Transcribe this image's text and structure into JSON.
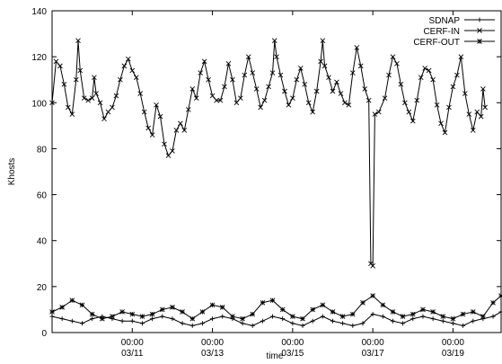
{
  "chart_data": {
    "type": "line",
    "title": "",
    "xlabel": "time",
    "ylabel": "Khosts",
    "ylim": [
      0,
      140
    ],
    "yticks": [
      0,
      20,
      40,
      60,
      80,
      100,
      120,
      140
    ],
    "xlim": [
      0,
      11.2
    ],
    "xticks": [
      {
        "x": 2,
        "line1": "00:00",
        "line2": "03/11"
      },
      {
        "x": 4,
        "line1": "00:00",
        "line2": "03/13"
      },
      {
        "x": 6,
        "line1": "00:00",
        "line2": "03/15"
      },
      {
        "x": 8,
        "line1": "00:00",
        "line2": "03/17"
      },
      {
        "x": 10,
        "line1": "00:00",
        "line2": "03/19"
      }
    ],
    "legend_position": "top-right",
    "grid": false,
    "series": [
      {
        "name": "SDNAP",
        "marker": "plus",
        "points": [
          [
            0.0,
            7
          ],
          [
            0.25,
            6
          ],
          [
            0.5,
            5
          ],
          [
            0.75,
            4
          ],
          [
            1.0,
            6
          ],
          [
            1.25,
            7
          ],
          [
            1.5,
            6
          ],
          [
            1.75,
            5
          ],
          [
            2.0,
            5
          ],
          [
            2.25,
            4
          ],
          [
            2.5,
            6
          ],
          [
            2.75,
            7
          ],
          [
            3.0,
            6
          ],
          [
            3.25,
            4
          ],
          [
            3.5,
            3
          ],
          [
            3.75,
            4
          ],
          [
            4.0,
            6
          ],
          [
            4.25,
            7
          ],
          [
            4.5,
            6
          ],
          [
            4.75,
            4
          ],
          [
            5.0,
            3
          ],
          [
            5.25,
            5
          ],
          [
            5.5,
            7
          ],
          [
            5.75,
            6
          ],
          [
            6.0,
            4
          ],
          [
            6.25,
            3
          ],
          [
            6.5,
            5
          ],
          [
            6.75,
            7
          ],
          [
            7.0,
            5
          ],
          [
            7.25,
            4
          ],
          [
            7.5,
            3
          ],
          [
            7.75,
            4
          ],
          [
            8.0,
            8
          ],
          [
            8.25,
            7
          ],
          [
            8.5,
            5
          ],
          [
            8.75,
            4
          ],
          [
            9.0,
            6
          ],
          [
            9.25,
            7
          ],
          [
            9.5,
            6
          ],
          [
            9.75,
            5
          ],
          [
            10.0,
            4
          ],
          [
            10.25,
            3
          ],
          [
            10.5,
            5
          ],
          [
            10.75,
            6
          ],
          [
            11.0,
            7
          ],
          [
            11.2,
            9
          ]
        ]
      },
      {
        "name": "CERF-IN",
        "marker": "x",
        "points": [
          [
            0.0,
            100
          ],
          [
            0.1,
            118
          ],
          [
            0.2,
            116
          ],
          [
            0.3,
            108
          ],
          [
            0.4,
            98
          ],
          [
            0.5,
            95
          ],
          [
            0.6,
            110
          ],
          [
            0.65,
            127
          ],
          [
            0.7,
            114
          ],
          [
            0.8,
            102
          ],
          [
            0.9,
            101
          ],
          [
            1.0,
            102
          ],
          [
            1.05,
            111
          ],
          [
            1.1,
            104
          ],
          [
            1.2,
            100
          ],
          [
            1.3,
            93
          ],
          [
            1.4,
            96
          ],
          [
            1.5,
            98
          ],
          [
            1.6,
            103
          ],
          [
            1.7,
            110
          ],
          [
            1.8,
            116
          ],
          [
            1.9,
            119
          ],
          [
            2.0,
            114
          ],
          [
            2.1,
            111
          ],
          [
            2.2,
            104
          ],
          [
            2.3,
            96
          ],
          [
            2.4,
            89
          ],
          [
            2.5,
            86
          ],
          [
            2.6,
            99
          ],
          [
            2.7,
            94
          ],
          [
            2.8,
            82
          ],
          [
            2.9,
            77
          ],
          [
            3.0,
            79
          ],
          [
            3.1,
            88
          ],
          [
            3.2,
            91
          ],
          [
            3.3,
            88
          ],
          [
            3.4,
            97
          ],
          [
            3.5,
            106
          ],
          [
            3.6,
            102
          ],
          [
            3.7,
            113
          ],
          [
            3.8,
            118
          ],
          [
            3.9,
            110
          ],
          [
            4.0,
            103
          ],
          [
            4.1,
            101
          ],
          [
            4.2,
            101
          ],
          [
            4.3,
            107
          ],
          [
            4.4,
            117
          ],
          [
            4.5,
            110
          ],
          [
            4.6,
            100
          ],
          [
            4.7,
            102
          ],
          [
            4.8,
            112
          ],
          [
            4.9,
            120
          ],
          [
            5.0,
            113
          ],
          [
            5.1,
            106
          ],
          [
            5.2,
            98
          ],
          [
            5.3,
            101
          ],
          [
            5.4,
            107
          ],
          [
            5.5,
            113
          ],
          [
            5.55,
            127
          ],
          [
            5.6,
            120
          ],
          [
            5.7,
            112
          ],
          [
            5.8,
            105
          ],
          [
            5.9,
            99
          ],
          [
            6.0,
            102
          ],
          [
            6.1,
            110
          ],
          [
            6.2,
            115
          ],
          [
            6.3,
            108
          ],
          [
            6.4,
            100
          ],
          [
            6.5,
            96
          ],
          [
            6.6,
            105
          ],
          [
            6.7,
            118
          ],
          [
            6.75,
            127
          ],
          [
            6.8,
            116
          ],
          [
            6.9,
            111
          ],
          [
            7.0,
            105
          ],
          [
            7.1,
            109
          ],
          [
            7.2,
            104
          ],
          [
            7.3,
            100
          ],
          [
            7.4,
            99
          ],
          [
            7.5,
            113
          ],
          [
            7.6,
            124
          ],
          [
            7.7,
            116
          ],
          [
            7.8,
            106
          ],
          [
            7.9,
            101
          ],
          [
            7.95,
            30
          ],
          [
            8.0,
            29
          ],
          [
            8.05,
            95
          ],
          [
            8.15,
            96
          ],
          [
            8.3,
            102
          ],
          [
            8.4,
            112
          ],
          [
            8.5,
            120
          ],
          [
            8.6,
            117
          ],
          [
            8.7,
            108
          ],
          [
            8.8,
            100
          ],
          [
            8.9,
            96
          ],
          [
            9.0,
            92
          ],
          [
            9.1,
            101
          ],
          [
            9.2,
            111
          ],
          [
            9.3,
            115
          ],
          [
            9.4,
            114
          ],
          [
            9.5,
            110
          ],
          [
            9.6,
            99
          ],
          [
            9.7,
            91
          ],
          [
            9.8,
            87
          ],
          [
            9.9,
            98
          ],
          [
            10.0,
            107
          ],
          [
            10.1,
            112
          ],
          [
            10.2,
            120
          ],
          [
            10.3,
            104
          ],
          [
            10.4,
            95
          ],
          [
            10.5,
            88
          ],
          [
            10.6,
            96
          ],
          [
            10.7,
            94
          ],
          [
            10.75,
            106
          ],
          [
            10.8,
            98
          ]
        ]
      },
      {
        "name": "CERF-OUT",
        "marker": "star",
        "points": [
          [
            0.0,
            9
          ],
          [
            0.25,
            11
          ],
          [
            0.5,
            14
          ],
          [
            0.75,
            12
          ],
          [
            1.0,
            8
          ],
          [
            1.25,
            6
          ],
          [
            1.5,
            7
          ],
          [
            1.75,
            9
          ],
          [
            2.0,
            8
          ],
          [
            2.25,
            7
          ],
          [
            2.5,
            8
          ],
          [
            2.75,
            10
          ],
          [
            3.0,
            11
          ],
          [
            3.25,
            9
          ],
          [
            3.5,
            6
          ],
          [
            3.75,
            9
          ],
          [
            4.0,
            12
          ],
          [
            4.25,
            11
          ],
          [
            4.5,
            7
          ],
          [
            4.75,
            6
          ],
          [
            5.0,
            8
          ],
          [
            5.25,
            13
          ],
          [
            5.5,
            14
          ],
          [
            5.75,
            10
          ],
          [
            6.0,
            7
          ],
          [
            6.25,
            6
          ],
          [
            6.5,
            10
          ],
          [
            6.75,
            12
          ],
          [
            7.0,
            9
          ],
          [
            7.25,
            7
          ],
          [
            7.5,
            8
          ],
          [
            7.75,
            13
          ],
          [
            8.0,
            16
          ],
          [
            8.25,
            12
          ],
          [
            8.5,
            9
          ],
          [
            8.75,
            7
          ],
          [
            9.0,
            8
          ],
          [
            9.25,
            10
          ],
          [
            9.5,
            9
          ],
          [
            9.75,
            7
          ],
          [
            10.0,
            6
          ],
          [
            10.25,
            8
          ],
          [
            10.5,
            9
          ],
          [
            10.75,
            7
          ],
          [
            11.0,
            13
          ],
          [
            11.2,
            16
          ]
        ]
      }
    ]
  }
}
